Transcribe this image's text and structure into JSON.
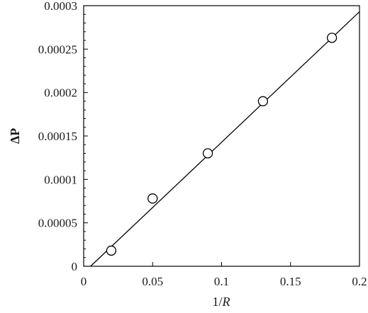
{
  "chart_data": {
    "type": "scatter",
    "xlabel_prefix": "1/",
    "xlabel_var": "R",
    "ylabel": "ΔP",
    "xlim": [
      0,
      0.2
    ],
    "ylim": [
      0,
      0.0003
    ],
    "x_ticks": [
      {
        "value": 0,
        "label": "0"
      },
      {
        "value": 0.05,
        "label": "0.05"
      },
      {
        "value": 0.1,
        "label": "0.1"
      },
      {
        "value": 0.15,
        "label": "0.15"
      },
      {
        "value": 0.2,
        "label": "0.2"
      }
    ],
    "y_ticks": [
      {
        "value": 0,
        "label": "0"
      },
      {
        "value": 5e-05,
        "label": "0.00005"
      },
      {
        "value": 0.0001,
        "label": "0.0001"
      },
      {
        "value": 0.00015,
        "label": "0.00015"
      },
      {
        "value": 0.0002,
        "label": "0.0002"
      },
      {
        "value": 0.00025,
        "label": "0.00025"
      },
      {
        "value": 0.0003,
        "label": "0.0003"
      }
    ],
    "series": [
      {
        "marker": "open-circle",
        "x": [
          0.02,
          0.05,
          0.09,
          0.13,
          0.18
        ],
        "y": [
          1.8e-05,
          7.8e-05,
          0.00013,
          0.00019,
          0.000263
        ]
      }
    ],
    "fit_line": {
      "x": [
        0.005,
        0.2
      ],
      "y": [
        0.0,
        0.000293
      ]
    },
    "grid": false,
    "legend": "none"
  }
}
